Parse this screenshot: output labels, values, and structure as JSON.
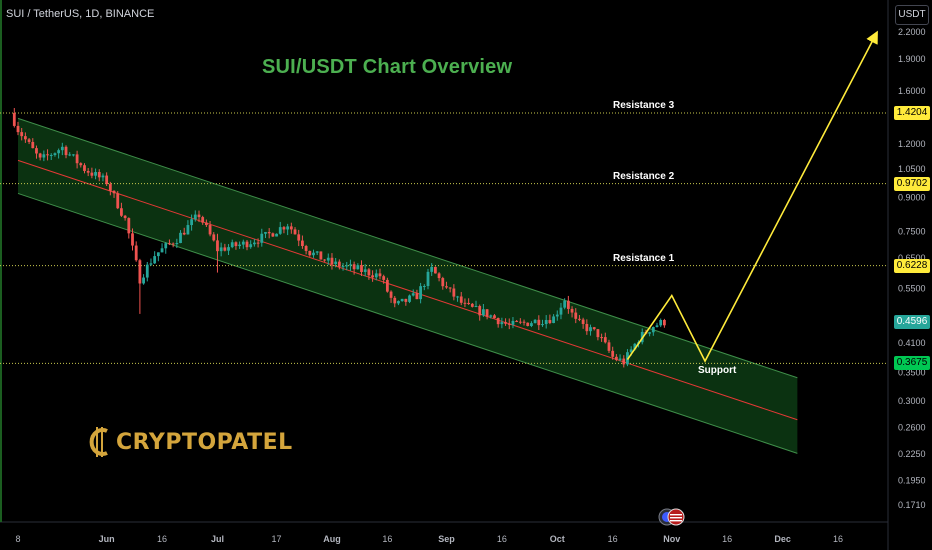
{
  "header": {
    "symbol_line": "SUI / TetherUS, 1D, BINANCE"
  },
  "title": "SUI/USDT Chart Overview",
  "currency_button": "USDT",
  "brand": "CRYPTOPATEL",
  "colors": {
    "background": "#000000",
    "up_candle": "#26a69a",
    "down_candle": "#ef5350",
    "channel_fill": "#0d3b14",
    "channel_border": "#3f8f4a",
    "midline": "#e53935",
    "level_line": "#c9c94d",
    "projection": "#ffeb3b",
    "title": "#4caf50",
    "brand": "#d4a53c"
  },
  "levels": [
    {
      "name": "Resistance 3",
      "label": "Resistance 3",
      "price": 1.4204,
      "price_label": "1.4204"
    },
    {
      "name": "Resistance 2",
      "label": "Resistance 2",
      "price": 0.9702,
      "price_label": "0.9702"
    },
    {
      "name": "Resistance 1",
      "label": "Resistance 1",
      "price": 0.6228,
      "price_label": "0.6228"
    },
    {
      "name": "Support",
      "label": "Support",
      "price": 0.3675,
      "price_label": "0.3675"
    }
  ],
  "current_price": {
    "value": 0.4596,
    "label": "0.4596"
  },
  "chart_data": {
    "type": "candlestick",
    "title": "SUI/USDT Chart Overview",
    "y_scale": "log",
    "ylim": [
      0.165,
      2.4
    ],
    "y_ticks": [
      "2.2000",
      "1.9000",
      "1.6000",
      "1.2000",
      "1.0500",
      "0.9000",
      "0.7500",
      "0.6500",
      "0.5500",
      "0.4100",
      "0.3500",
      "0.3000",
      "0.2600",
      "0.2250",
      "0.1950",
      "0.1710"
    ],
    "x_ticks": [
      "8",
      "Jun",
      "16",
      "Jul",
      "17",
      "Aug",
      "16",
      "Sep",
      "16",
      "Oct",
      "16",
      "Nov",
      "16",
      "Dec",
      "16"
    ],
    "x_tick_dates": [
      "2023-05-08",
      "2023-06-01",
      "2023-06-16",
      "2023-07-01",
      "2023-07-17",
      "2023-08-01",
      "2023-08-16",
      "2023-09-01",
      "2023-09-16",
      "2023-10-01",
      "2023-10-16",
      "2023-11-01",
      "2023-11-16",
      "2023-12-01",
      "2023-12-16"
    ],
    "x_range": [
      "2023-05-08",
      "2023-12-24"
    ],
    "price_path": [
      {
        "date": "2023-05-06",
        "close": 1.42
      },
      {
        "date": "2023-05-08",
        "close": 1.3
      },
      {
        "date": "2023-05-14",
        "close": 1.1
      },
      {
        "date": "2023-05-20",
        "close": 1.18
      },
      {
        "date": "2023-05-26",
        "close": 1.05
      },
      {
        "date": "2023-06-01",
        "close": 0.98
      },
      {
        "date": "2023-06-06",
        "close": 0.8
      },
      {
        "date": "2023-06-10",
        "close": 0.58
      },
      {
        "date": "2023-06-14",
        "close": 0.66
      },
      {
        "date": "2023-06-20",
        "close": 0.72
      },
      {
        "date": "2023-06-26",
        "close": 0.82
      },
      {
        "date": "2023-07-01",
        "close": 0.68
      },
      {
        "date": "2023-07-08",
        "close": 0.7
      },
      {
        "date": "2023-07-14",
        "close": 0.73
      },
      {
        "date": "2023-07-20",
        "close": 0.78
      },
      {
        "date": "2023-07-26",
        "close": 0.67
      },
      {
        "date": "2023-08-01",
        "close": 0.63
      },
      {
        "date": "2023-08-08",
        "close": 0.61
      },
      {
        "date": "2023-08-14",
        "close": 0.59
      },
      {
        "date": "2023-08-18",
        "close": 0.5
      },
      {
        "date": "2023-08-24",
        "close": 0.53
      },
      {
        "date": "2023-08-28",
        "close": 0.61
      },
      {
        "date": "2023-09-01",
        "close": 0.55
      },
      {
        "date": "2023-09-06",
        "close": 0.5
      },
      {
        "date": "2023-09-12",
        "close": 0.48
      },
      {
        "date": "2023-09-18",
        "close": 0.45
      },
      {
        "date": "2023-09-24",
        "close": 0.46
      },
      {
        "date": "2023-09-30",
        "close": 0.47
      },
      {
        "date": "2023-10-03",
        "close": 0.52
      },
      {
        "date": "2023-10-06",
        "close": 0.46
      },
      {
        "date": "2023-10-12",
        "close": 0.43
      },
      {
        "date": "2023-10-16",
        "close": 0.38
      },
      {
        "date": "2023-10-19",
        "close": 0.37
      },
      {
        "date": "2023-10-23",
        "close": 0.42
      },
      {
        "date": "2023-10-27",
        "close": 0.45
      },
      {
        "date": "2023-10-30",
        "close": 0.46
      }
    ],
    "channel": {
      "upper": [
        {
          "date": "2023-05-08",
          "price": 1.38
        },
        {
          "date": "2023-12-05",
          "price": 0.34
        }
      ],
      "mid": [
        {
          "date": "2023-05-08",
          "price": 1.1
        },
        {
          "date": "2023-12-05",
          "price": 0.271
        }
      ],
      "lower": [
        {
          "date": "2023-05-08",
          "price": 0.92
        },
        {
          "date": "2023-12-05",
          "price": 0.226
        }
      ]
    },
    "projection": [
      {
        "date": "2023-10-20",
        "price": 0.375
      },
      {
        "date": "2023-11-01",
        "price": 0.53
      },
      {
        "date": "2023-11-10",
        "price": 0.372
      },
      {
        "date": "2023-12-26",
        "price": 2.15
      }
    ]
  }
}
